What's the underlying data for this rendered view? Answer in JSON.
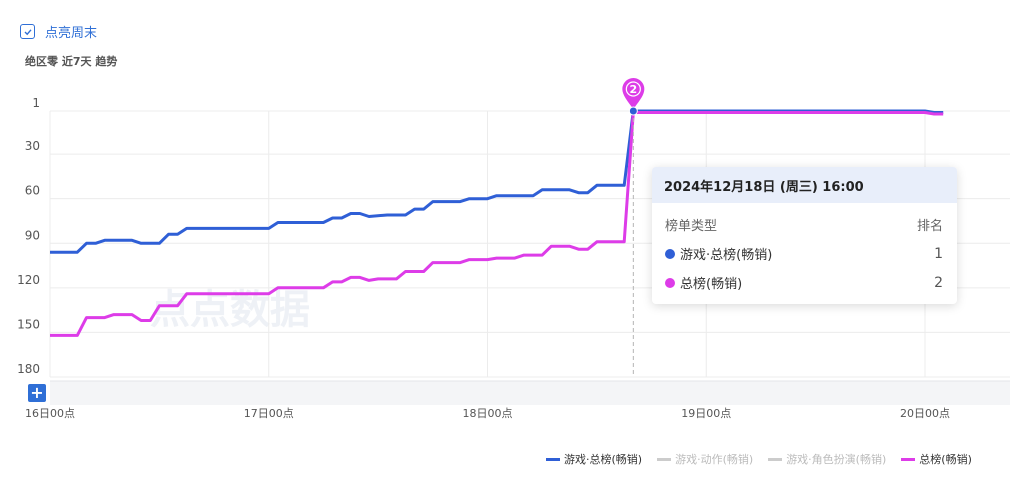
{
  "toggle": {
    "label": "点亮周末",
    "checked": true
  },
  "subtitle": "绝区零 近7天 趋势",
  "tooltip": {
    "title": "2024年12月18日 (周三) 16:00",
    "col_type": "榜单类型",
    "col_rank": "排名",
    "rows": [
      {
        "label": "游戏·总榜(畅销)",
        "value": "1",
        "color": "#2f5fd6"
      },
      {
        "label": "总榜(畅销)",
        "value": "2",
        "color": "#dd3ce8"
      }
    ]
  },
  "marker_label": "2",
  "watermark": "点点数据",
  "zoom_label": "+",
  "legend": [
    {
      "label": "游戏·总榜(畅销)",
      "color": "#2f5fd6",
      "active": true
    },
    {
      "label": "游戏·动作(畅销)",
      "color": "#cccccc",
      "active": false
    },
    {
      "label": "游戏·角色扮演(畅销)",
      "color": "#cccccc",
      "active": false
    },
    {
      "label": "总榜(畅销)",
      "color": "#dd3ce8",
      "active": true
    }
  ],
  "chart_data": {
    "type": "line",
    "y_inverted": true,
    "ylim": [
      1,
      180
    ],
    "y_ticks": [
      1,
      30,
      60,
      90,
      120,
      150,
      180
    ],
    "x_range_hours": [
      0,
      98
    ],
    "x_ticks": [
      {
        "label": "16日00点",
        "hour": 0
      },
      {
        "label": "17日00点",
        "hour": 24
      },
      {
        "label": "18日00点",
        "hour": 48
      },
      {
        "label": "19日00点",
        "hour": 72
      },
      {
        "label": "20日00点",
        "hour": 96
      }
    ],
    "weekend_highlight": "点亮周末",
    "hover_hour": 64,
    "series": [
      {
        "name": "游戏·总榜(畅销)",
        "color": "#2f5fd6",
        "points": [
          [
            0,
            96
          ],
          [
            3,
            96
          ],
          [
            4,
            90
          ],
          [
            5,
            90
          ],
          [
            6,
            88
          ],
          [
            9,
            88
          ],
          [
            10,
            90
          ],
          [
            12,
            90
          ],
          [
            13,
            84
          ],
          [
            14,
            84
          ],
          [
            15,
            80
          ],
          [
            24,
            80
          ],
          [
            25,
            76
          ],
          [
            30,
            76
          ],
          [
            31,
            73
          ],
          [
            32,
            73
          ],
          [
            33,
            70
          ],
          [
            34,
            70
          ],
          [
            35,
            72
          ],
          [
            37,
            71
          ],
          [
            39,
            71
          ],
          [
            40,
            67
          ],
          [
            41,
            67
          ],
          [
            42,
            62
          ],
          [
            45,
            62
          ],
          [
            46,
            60
          ],
          [
            48,
            60
          ],
          [
            49,
            58
          ],
          [
            53,
            58
          ],
          [
            54,
            54
          ],
          [
            57,
            54
          ],
          [
            58,
            56
          ],
          [
            59,
            56
          ],
          [
            60,
            51
          ],
          [
            63,
            51
          ],
          [
            64,
            1
          ],
          [
            96,
            1
          ],
          [
            97,
            2
          ],
          [
            98,
            2
          ]
        ]
      },
      {
        "name": "总榜(畅销)",
        "color": "#dd3ce8",
        "points": [
          [
            0,
            152
          ],
          [
            3,
            152
          ],
          [
            4,
            140
          ],
          [
            6,
            140
          ],
          [
            7,
            138
          ],
          [
            9,
            138
          ],
          [
            10,
            142
          ],
          [
            11,
            142
          ],
          [
            12,
            132
          ],
          [
            14,
            132
          ],
          [
            15,
            124
          ],
          [
            24,
            124
          ],
          [
            25,
            120
          ],
          [
            30,
            120
          ],
          [
            31,
            116
          ],
          [
            32,
            116
          ],
          [
            33,
            113
          ],
          [
            34,
            113
          ],
          [
            35,
            115
          ],
          [
            36,
            114
          ],
          [
            38,
            114
          ],
          [
            39,
            109
          ],
          [
            41,
            109
          ],
          [
            42,
            103
          ],
          [
            45,
            103
          ],
          [
            46,
            101
          ],
          [
            48,
            101
          ],
          [
            49,
            100
          ],
          [
            51,
            100
          ],
          [
            52,
            98
          ],
          [
            54,
            98
          ],
          [
            55,
            92
          ],
          [
            57,
            92
          ],
          [
            58,
            94
          ],
          [
            59,
            94
          ],
          [
            60,
            89
          ],
          [
            63,
            89
          ],
          [
            64,
            2
          ],
          [
            96,
            2
          ],
          [
            97,
            3
          ],
          [
            98,
            3
          ]
        ]
      }
    ]
  }
}
